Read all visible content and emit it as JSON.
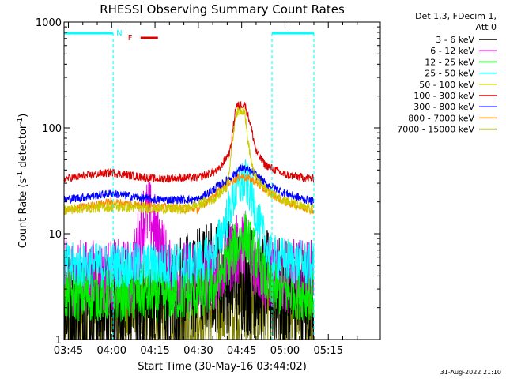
{
  "chart_data": {
    "type": "line",
    "title": "RHESSI Observing Summary Count Rates",
    "xlabel": "Start Time (30-May-16 03:44:02)",
    "ylabel_main": "Count Rate (s",
    "ylabel_sup1": "-1",
    "ylabel_mid": " detector",
    "ylabel_sup2": "-1",
    "ylabel_end": ")",
    "y_scale": "log",
    "ylim": [
      1,
      1000
    ],
    "xlim_minutes_after_0345": [
      -1.5,
      108
    ],
    "x_ticks": [
      {
        "label": "03:45",
        "min": 0
      },
      {
        "label": "04:00",
        "min": 15
      },
      {
        "label": "04:15",
        "min": 30
      },
      {
        "label": "04:30",
        "min": 45
      },
      {
        "label": "04:45",
        "min": 60
      },
      {
        "label": "05:00",
        "min": 75
      },
      {
        "label": "05:15",
        "min": 90
      }
    ],
    "y_ticks": [
      {
        "label": "1",
        "value": 1
      },
      {
        "label": "10",
        "value": 10
      },
      {
        "label": "100",
        "value": 100
      },
      {
        "label": "1000",
        "value": 1000
      }
    ],
    "legend_header": [
      "Det 1,3, FDecim 1,",
      "Att 0"
    ],
    "legend_placement": "right",
    "night_label": "N",
    "flare_label": "F",
    "night_intervals_min": [
      [
        -1.5,
        15.5
      ],
      [
        70.5,
        85
      ]
    ],
    "flare_interval_min": [
      25,
      31
    ],
    "series": [
      {
        "name": "3 - 6 keV",
        "color": "#000000",
        "points": [
          [
            -1.5,
            2
          ],
          [
            30,
            2
          ],
          [
            40,
            3
          ],
          [
            50,
            4
          ],
          [
            60,
            4
          ],
          [
            70,
            3
          ],
          [
            80,
            2
          ],
          [
            85,
            2
          ]
        ]
      },
      {
        "name": "6 - 12 keV",
        "color": "#dd00dd",
        "points": [
          [
            -1.5,
            4
          ],
          [
            22,
            4
          ],
          [
            26,
            14
          ],
          [
            28,
            15
          ],
          [
            32,
            8
          ],
          [
            35,
            4
          ],
          [
            50,
            4
          ],
          [
            56,
            6
          ],
          [
            61,
            8
          ],
          [
            64,
            6
          ],
          [
            68,
            4
          ],
          [
            85,
            4
          ]
        ]
      },
      {
        "name": "12 - 25 keV",
        "color": "#00ee00",
        "points": [
          [
            -1.5,
            2.6
          ],
          [
            40,
            2.6
          ],
          [
            50,
            3
          ],
          [
            56,
            6
          ],
          [
            61,
            10
          ],
          [
            65,
            6
          ],
          [
            70,
            3
          ],
          [
            85,
            2.6
          ]
        ]
      },
      {
        "name": "25 - 50 keV",
        "color": "#00ffff",
        "points": [
          [
            -1.5,
            5
          ],
          [
            40,
            5
          ],
          [
            50,
            6
          ],
          [
            54,
            12
          ],
          [
            58,
            25
          ],
          [
            61,
            32
          ],
          [
            63,
            25
          ],
          [
            66,
            12
          ],
          [
            70,
            6
          ],
          [
            85,
            5
          ]
        ]
      },
      {
        "name": "50 - 100 keV",
        "color": "#cccc00",
        "points": [
          [
            -1.5,
            17
          ],
          [
            15,
            18
          ],
          [
            40,
            17
          ],
          [
            50,
            21
          ],
          [
            55,
            28
          ],
          [
            58,
            140
          ],
          [
            61,
            150
          ],
          [
            62,
            80
          ],
          [
            64,
            38
          ],
          [
            66,
            30
          ],
          [
            70,
            24
          ],
          [
            80,
            18
          ],
          [
            85,
            17
          ]
        ]
      },
      {
        "name": "100 - 300 keV",
        "color": "#dd0000",
        "points": [
          [
            -1.5,
            33
          ],
          [
            15,
            38
          ],
          [
            20,
            36
          ],
          [
            30,
            33
          ],
          [
            45,
            34
          ],
          [
            52,
            40
          ],
          [
            56,
            60
          ],
          [
            58,
            160
          ],
          [
            61,
            170
          ],
          [
            63,
            110
          ],
          [
            65,
            60
          ],
          [
            68,
            45
          ],
          [
            75,
            36
          ],
          [
            85,
            33
          ]
        ]
      },
      {
        "name": "300 - 800 keV",
        "color": "#0000ff",
        "points": [
          [
            -1.5,
            21
          ],
          [
            15,
            24
          ],
          [
            30,
            21
          ],
          [
            45,
            21
          ],
          [
            55,
            32
          ],
          [
            60,
            42
          ],
          [
            64,
            38
          ],
          [
            68,
            30
          ],
          [
            75,
            24
          ],
          [
            85,
            20
          ]
        ]
      },
      {
        "name": "800 - 7000 keV",
        "color": "#ff8800",
        "points": [
          [
            -1.5,
            16.5
          ],
          [
            15,
            20
          ],
          [
            30,
            18
          ],
          [
            45,
            17
          ],
          [
            55,
            30
          ],
          [
            60,
            35
          ],
          [
            64,
            32
          ],
          [
            68,
            26
          ],
          [
            75,
            20
          ],
          [
            85,
            16.5
          ]
        ]
      },
      {
        "name": "7000 - 15000 keV",
        "color": "#808000",
        "points": [
          [
            -1.5,
            1.8
          ],
          [
            40,
            1.8
          ],
          [
            60,
            2.2
          ],
          [
            85,
            1.8
          ]
        ]
      }
    ]
  },
  "footer": {
    "timestamp": "31-Aug-2022 21:10"
  }
}
